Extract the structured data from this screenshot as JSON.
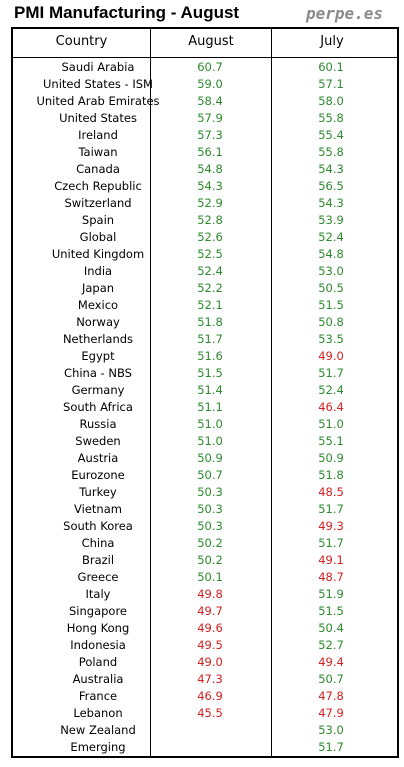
{
  "title": "PMI Manufacturing - August",
  "watermark": "perpe.es",
  "colors": {
    "expansion": "#2f8a2f",
    "contraction": "#d42020"
  },
  "table": {
    "columns": [
      "Country",
      "August",
      "July"
    ],
    "rows": [
      {
        "country": "Saudi Arabia",
        "august": "60.7",
        "july": "60.1"
      },
      {
        "country": "United States - ISM",
        "august": "59.0",
        "july": "57.1"
      },
      {
        "country": "United Arab Emirates",
        "august": "58.4",
        "july": "58.0"
      },
      {
        "country": "United States",
        "august": "57.9",
        "july": "55.8"
      },
      {
        "country": "Ireland",
        "august": "57.3",
        "july": "55.4"
      },
      {
        "country": "Taiwan",
        "august": "56.1",
        "july": "55.8"
      },
      {
        "country": "Canada",
        "august": "54.8",
        "july": "54.3"
      },
      {
        "country": "Czech Republic",
        "august": "54.3",
        "july": "56.5"
      },
      {
        "country": "Switzerland",
        "august": "52.9",
        "july": "54.3"
      },
      {
        "country": "Spain",
        "august": "52.8",
        "july": "53.9"
      },
      {
        "country": "Global",
        "august": "52.6",
        "july": "52.4"
      },
      {
        "country": "United Kingdom",
        "august": "52.5",
        "july": "54.8"
      },
      {
        "country": "India",
        "august": "52.4",
        "july": "53.0"
      },
      {
        "country": "Japan",
        "august": "52.2",
        "july": "50.5"
      },
      {
        "country": "Mexico",
        "august": "52.1",
        "july": "51.5"
      },
      {
        "country": "Norway",
        "august": "51.8",
        "july": "50.8"
      },
      {
        "country": "Netherlands",
        "august": "51.7",
        "july": "53.5"
      },
      {
        "country": "Egypt",
        "august": "51.6",
        "july": "49.0"
      },
      {
        "country": "China - NBS",
        "august": "51.5",
        "july": "51.7"
      },
      {
        "country": "Germany",
        "august": "51.4",
        "july": "52.4"
      },
      {
        "country": "South Africa",
        "august": "51.1",
        "july": "46.4"
      },
      {
        "country": "Russia",
        "august": "51.0",
        "july": "51.0"
      },
      {
        "country": "Sweden",
        "august": "51.0",
        "july": "55.1"
      },
      {
        "country": "Austria",
        "august": "50.9",
        "july": "50.9"
      },
      {
        "country": "Eurozone",
        "august": "50.7",
        "july": "51.8"
      },
      {
        "country": "Turkey",
        "august": "50.3",
        "july": "48.5"
      },
      {
        "country": "Vietnam",
        "august": "50.3",
        "july": "51.7"
      },
      {
        "country": "South Korea",
        "august": "50.3",
        "july": "49.3"
      },
      {
        "country": "China",
        "august": "50.2",
        "july": "51.7"
      },
      {
        "country": "Brazil",
        "august": "50.2",
        "july": "49.1"
      },
      {
        "country": "Greece",
        "august": "50.1",
        "july": "48.7"
      },
      {
        "country": "Italy",
        "august": "49.8",
        "july": "51.9"
      },
      {
        "country": "Singapore",
        "august": "49.7",
        "july": "51.5"
      },
      {
        "country": "Hong Kong",
        "august": "49.6",
        "july": "50.4"
      },
      {
        "country": "Indonesia",
        "august": "49.5",
        "july": "52.7"
      },
      {
        "country": "Poland",
        "august": "49.0",
        "july": "49.4"
      },
      {
        "country": "Australia",
        "august": "47.3",
        "july": "50.7"
      },
      {
        "country": "France",
        "august": "46.9",
        "july": "47.8"
      },
      {
        "country": "Lebanon",
        "august": "45.5",
        "july": "47.9"
      },
      {
        "country": "New Zealand",
        "august": "",
        "july": "53.0"
      },
      {
        "country": "Emerging",
        "august": "",
        "july": "51.7"
      }
    ]
  }
}
